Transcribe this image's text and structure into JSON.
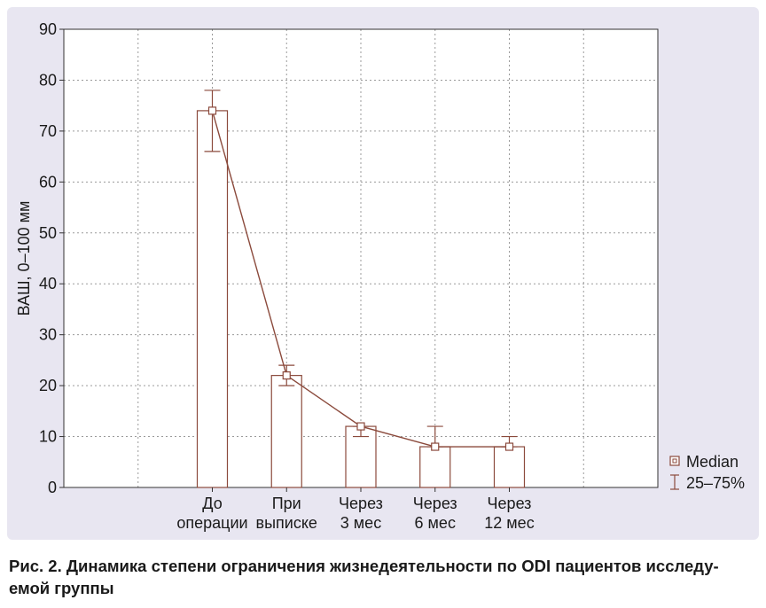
{
  "colors": {
    "frame_background": "#e8e6f1",
    "plot_background": "#ffffff",
    "series": "#8b4a3c",
    "grid": "#9a9a9a",
    "text": "#1a1a1a"
  },
  "caption": {
    "line1": "Рис. 2. Динамика степени ограничения жизнедеятельности по ODI пациентов исследу-",
    "line2": "емой группы"
  },
  "chart_data": {
    "type": "bar",
    "categories": [
      [
        "До",
        "операции"
      ],
      [
        "При",
        "выписке"
      ],
      [
        "Через",
        "3 мес"
      ],
      [
        "Через",
        "6 мес"
      ],
      [
        "Через",
        "12 мес"
      ]
    ],
    "median": [
      74,
      22,
      12,
      8,
      8
    ],
    "q25": [
      66,
      20,
      10,
      8,
      8
    ],
    "q75": [
      78,
      24,
      12,
      12,
      10
    ],
    "ylabel": "ВАШ, 0–100 мм",
    "ylim": [
      0,
      90
    ],
    "yticks": [
      0,
      10,
      20,
      30,
      40,
      50,
      60,
      70,
      80,
      90
    ],
    "grid": true,
    "legend_position": "bottom-right",
    "legend": {
      "median_label": "Median",
      "range_label": "25–75%"
    }
  }
}
